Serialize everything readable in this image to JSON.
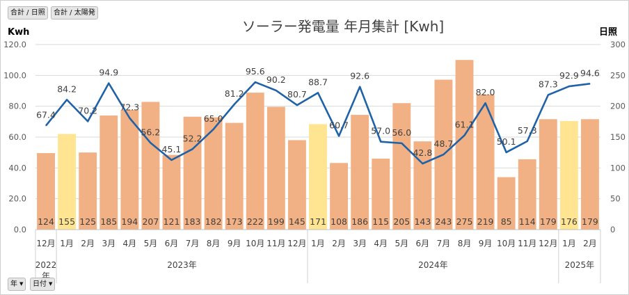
{
  "filters": {
    "top": [
      "合計 / 日照",
      "合計 / 太陽発"
    ],
    "bottom": [
      {
        "label": "年",
        "arrow": "▼"
      },
      {
        "label": "日付",
        "arrow": "▼"
      }
    ]
  },
  "chart_data": {
    "type": "bar+line",
    "title": "ソーラー発電量 年月集計 [Kwh]",
    "ylabel_left": "Kwh",
    "ylabel_right": "日照",
    "ylim_left": [
      0,
      120
    ],
    "ylim_right": [
      0,
      300
    ],
    "yticks_left": [
      "0.0",
      "20.0",
      "40.0",
      "60.0",
      "80.0",
      "100.0",
      "120.0"
    ],
    "yticks_right": [
      "0",
      "50",
      "100",
      "150",
      "200",
      "250",
      "300"
    ],
    "months": [
      "12月",
      "1月",
      "2月",
      "3月",
      "4月",
      "5月",
      "6月",
      "7月",
      "8月",
      "9月",
      "10月",
      "11月",
      "12月",
      "1月",
      "2月",
      "3月",
      "4月",
      "5月",
      "6月",
      "7月",
      "8月",
      "9月",
      "10月",
      "11月",
      "12月",
      "1月",
      "2月"
    ],
    "year_groups": [
      {
        "label": "2022年",
        "start": 0,
        "count": 1
      },
      {
        "label": "2023年",
        "start": 1,
        "count": 12
      },
      {
        "label": "2024年",
        "start": 13,
        "count": 12
      },
      {
        "label": "2025年",
        "start": 25,
        "count": 2
      }
    ],
    "series": [
      {
        "name": "合計 / 太陽発",
        "type": "bar",
        "axis": "left",
        "color": "#F2B184",
        "highlight_color": "#FFE591",
        "highlight": [
          1,
          13,
          25
        ],
        "values": [
          49.6,
          62.0,
          50.0,
          74.0,
          77.6,
          82.8,
          48.4,
          73.2,
          72.8,
          69.2,
          88.8,
          79.6,
          58.0,
          68.4,
          43.2,
          74.4,
          46.0,
          82.0,
          57.2,
          97.2,
          110.0,
          87.6,
          34.0,
          45.6,
          71.6,
          70.4,
          71.6
        ],
        "labels": [
          "124",
          "155",
          "125",
          "185",
          "194",
          "207",
          "121",
          "183",
          "182",
          "173",
          "222",
          "199",
          "145",
          "171",
          "108",
          "186",
          "115",
          "205",
          "143",
          "243",
          "275",
          "219",
          "85",
          "114",
          "179",
          "176",
          "179"
        ]
      },
      {
        "name": "合計 / 日照",
        "type": "line",
        "axis": "right",
        "color": "#1F62A8",
        "values": [
          168.5,
          210.5,
          175.5,
          237.25,
          180.75,
          140.5,
          112.75,
          130.5,
          162.5,
          203,
          239,
          225.5,
          201.75,
          221.75,
          151.75,
          231.5,
          142.5,
          140,
          107,
          121.75,
          152.75,
          205,
          125.25,
          143.25,
          218.25,
          232.25,
          236.5
        ],
        "labels": [
          "67.4",
          "84.2",
          "70.2",
          "94.9",
          "72.3",
          "56.2",
          "45.1",
          "52.2",
          "65.0",
          "81.2",
          "95.6",
          "90.2",
          "80.7",
          "88.7",
          "60.7",
          "92.6",
          "57.0",
          "56.0",
          "42.8",
          "48.7",
          "61.1",
          "82.0",
          "50.1",
          "57.3",
          "87.3",
          "92.9",
          "94.6"
        ]
      }
    ]
  }
}
